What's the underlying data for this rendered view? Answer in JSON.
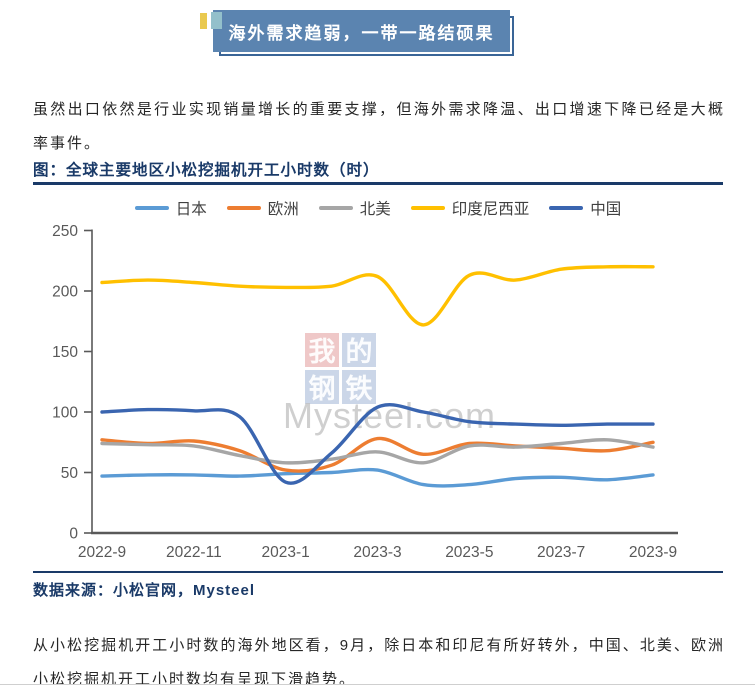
{
  "banner": {
    "title": "海外需求趋弱，一带一路结硕果"
  },
  "intro_paragraph": "虽然出口依然是行业实现销量增长的重要支撑，但海外需求降温、出口增速下降已经是大概率事件。",
  "figure": {
    "title": "图：全球主要地区小松挖掘机开工小时数（时）",
    "source": "数据来源：小松官网，Mysteel"
  },
  "watermark": {
    "blocks": [
      "我",
      "的",
      "钢",
      "铁"
    ],
    "site": "Mysteel.com"
  },
  "conclusion_paragraph": "从小松挖掘机开工小时数的海外地区看，9月，除日本和印尼有所好转外，中国、北美、欧洲小松挖掘机开工小时数均有呈现下滑趋势。",
  "colors": {
    "banner_bg": "#5b84b0",
    "accent_navy": "#1a3a68",
    "axis_gray": "#595959"
  },
  "chart_data": {
    "type": "line",
    "title": "全球主要地区小松挖掘机开工小时数（时）",
    "x": [
      "2022-9",
      "2022-10",
      "2022-11",
      "2022-12",
      "2023-1",
      "2023-2",
      "2023-3",
      "2023-4",
      "2023-5",
      "2023-6",
      "2023-7",
      "2023-8",
      "2023-9"
    ],
    "x_tick_labels": [
      "2022-9",
      "2022-11",
      "2023-1",
      "2023-3",
      "2023-5",
      "2023-7",
      "2023-9"
    ],
    "series": [
      {
        "name": "日本",
        "color": "#5B9BD5",
        "values": [
          47,
          48,
          48,
          47,
          49,
          50,
          52,
          40,
          40,
          45,
          46,
          44,
          48
        ]
      },
      {
        "name": "欧洲",
        "color": "#ED7D31",
        "values": [
          77,
          74,
          76,
          68,
          52,
          56,
          78,
          65,
          74,
          72,
          70,
          68,
          75
        ]
      },
      {
        "name": "北美",
        "color": "#A6A6A6",
        "values": [
          74,
          73,
          72,
          64,
          58,
          61,
          67,
          58,
          72,
          71,
          74,
          77,
          71
        ]
      },
      {
        "name": "印度尼西亚",
        "color": "#FFC000",
        "values": [
          207,
          209,
          207,
          204,
          203,
          204,
          212,
          172,
          213,
          209,
          218,
          220,
          220
        ]
      },
      {
        "name": "中国",
        "color": "#3A65B0",
        "values": [
          100,
          102,
          101,
          96,
          42,
          66,
          104,
          100,
          92,
          90,
          89,
          90,
          90
        ]
      }
    ],
    "ylim": [
      0,
      250
    ],
    "yticks": [
      0,
      50,
      100,
      150,
      200,
      250
    ],
    "xlabel": "",
    "ylabel": "",
    "legend_position": "top",
    "grid": false
  }
}
